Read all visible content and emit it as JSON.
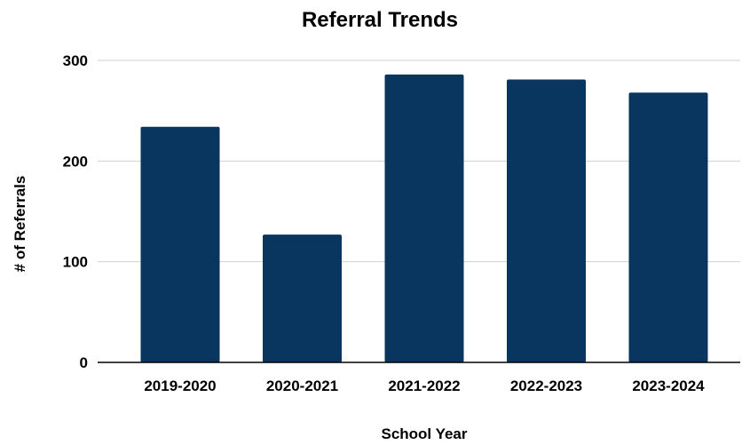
{
  "chart_data": {
    "type": "bar",
    "title": "Referral Trends",
    "xlabel": "School Year",
    "ylabel": "# of Referrals",
    "categories": [
      "2019-2020",
      "2020-2021",
      "2021-2022",
      "2022-2023",
      "2023-2024"
    ],
    "values": [
      234,
      127,
      286,
      281,
      268
    ],
    "ylim": [
      0,
      300
    ],
    "yticks": [
      0,
      100,
      200,
      300
    ],
    "grid": true,
    "legend": "none",
    "bar_color": "#08365e",
    "grid_color": "#d0d0d0",
    "axis_color": "#000000"
  }
}
